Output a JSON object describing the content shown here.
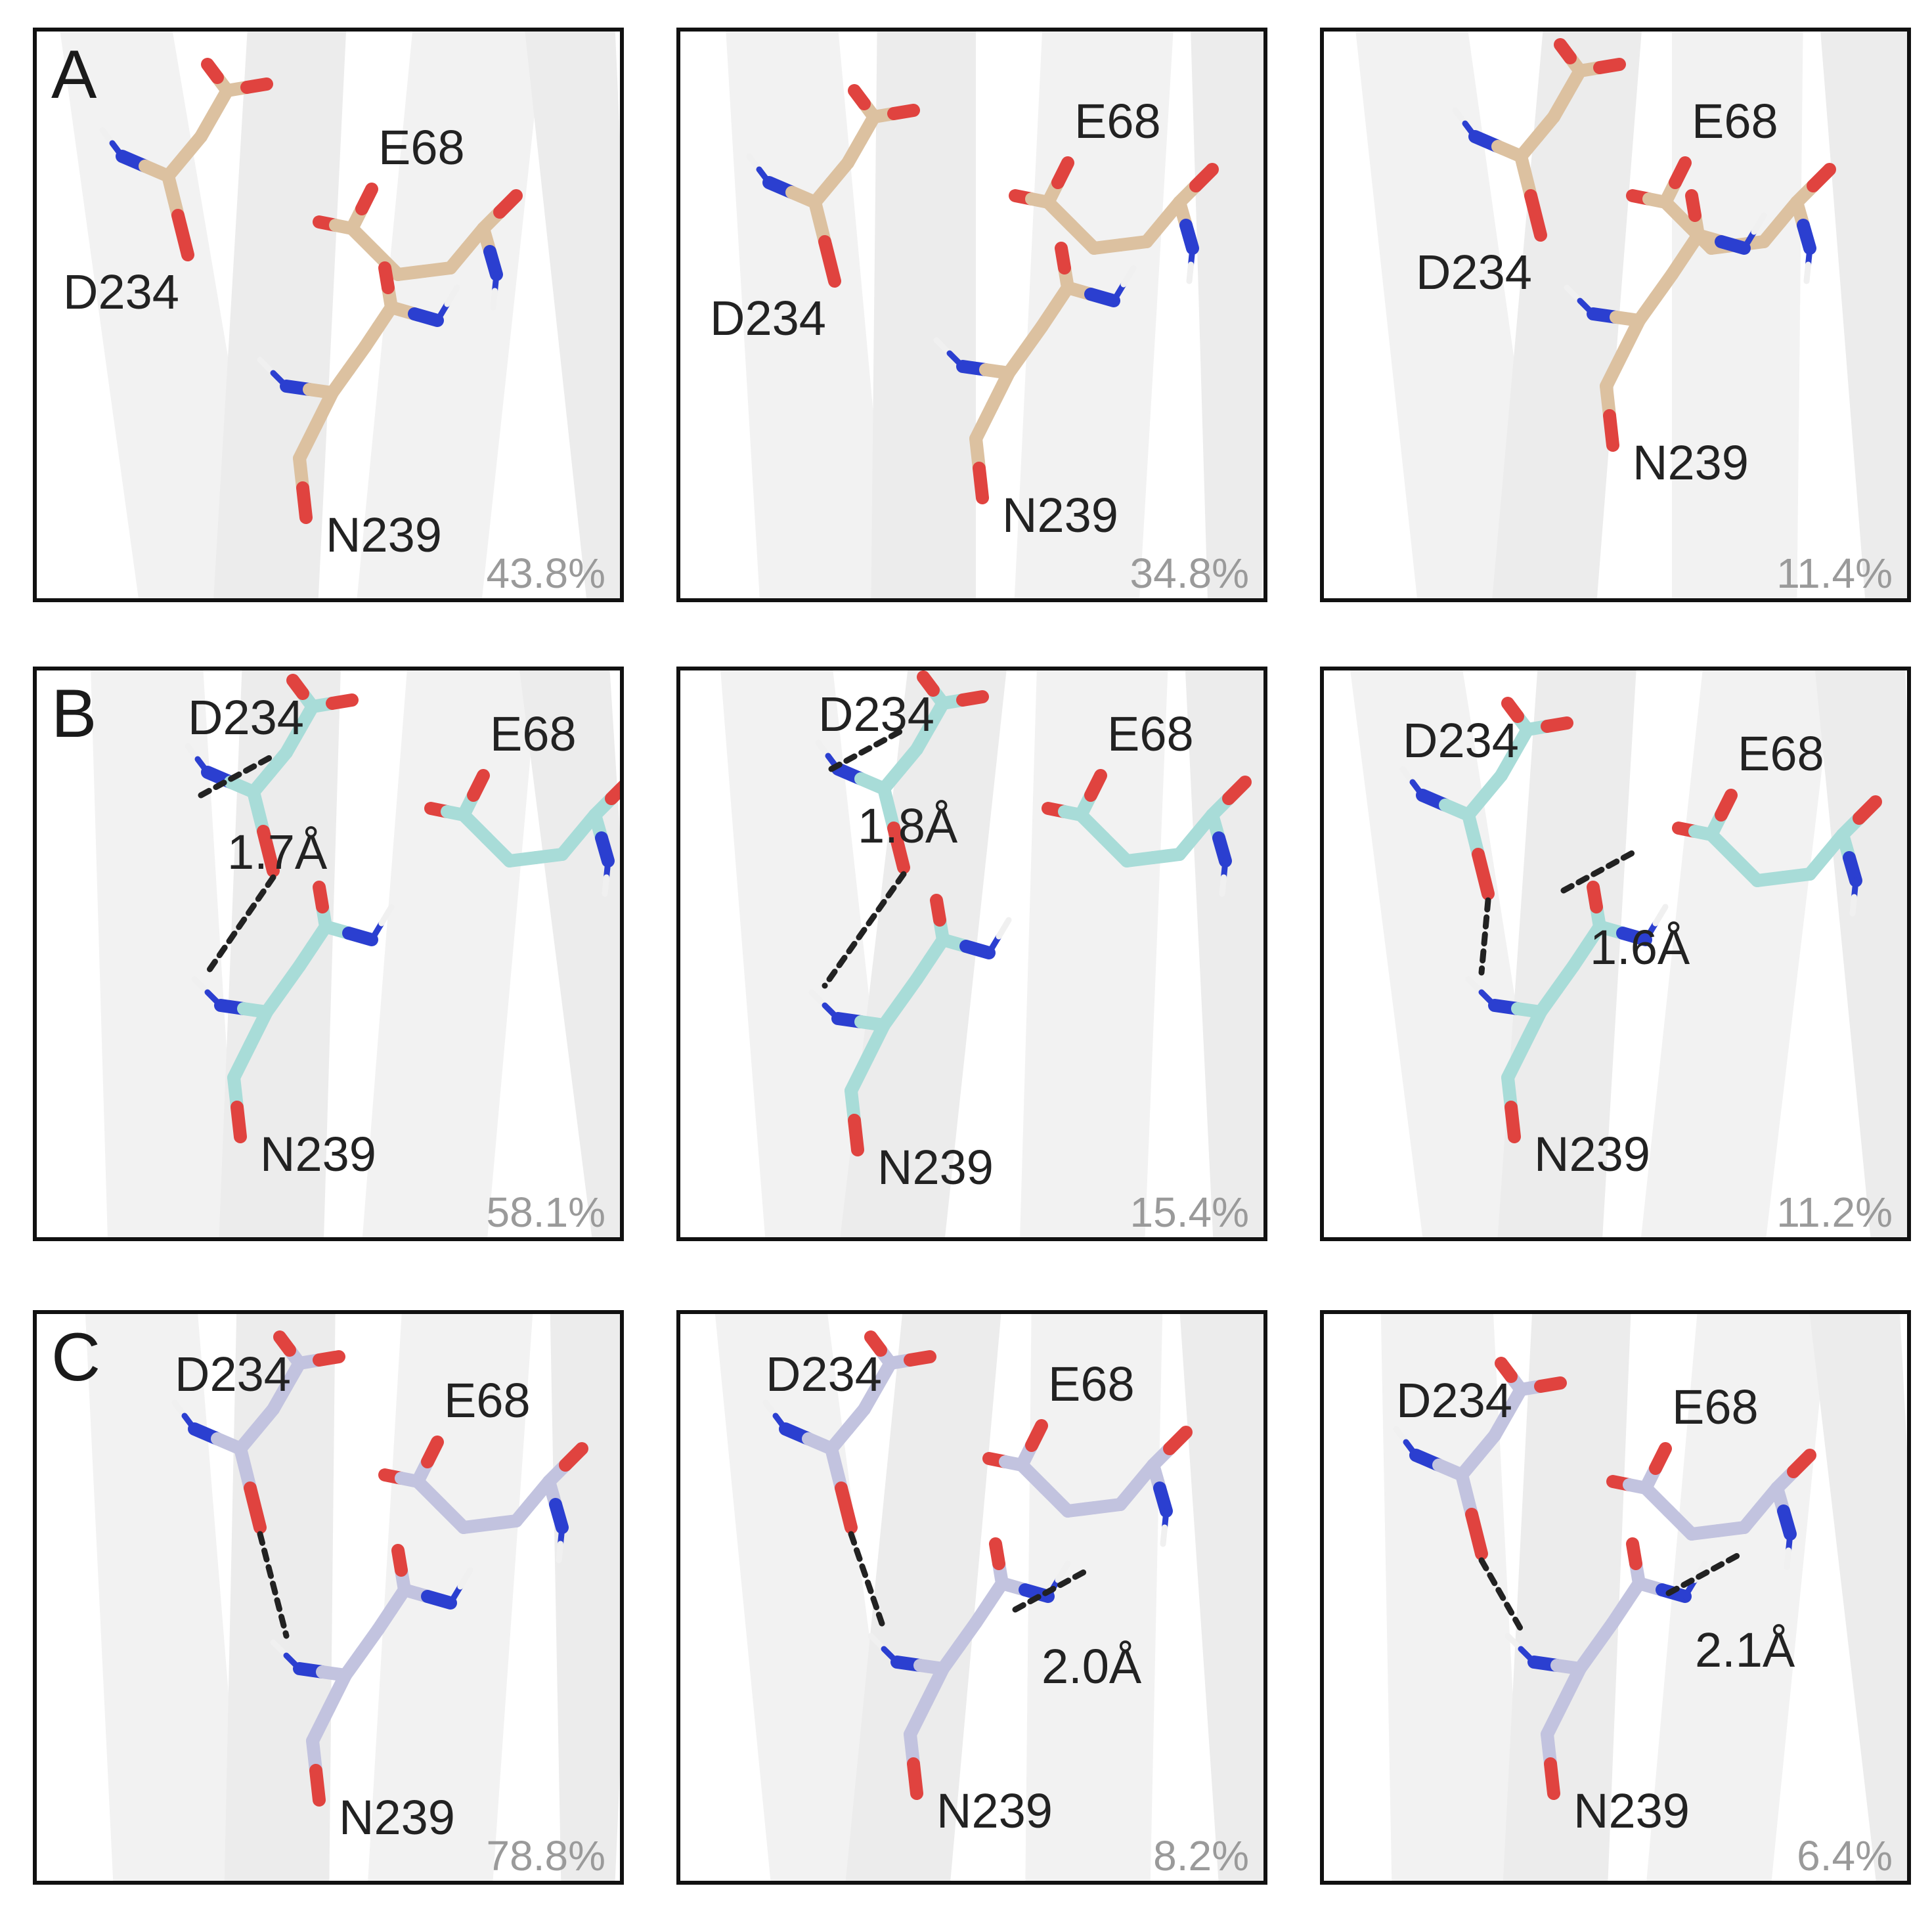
{
  "rows": [
    {
      "letter": "A",
      "carbon_color": "#dcc1a0",
      "panels": [
        {
          "labels": {
            "d": "D234",
            "e": "E68",
            "n": "N239"
          },
          "percent": "43.8%",
          "distances": []
        },
        {
          "labels": {
            "d": "D234",
            "e": "E68",
            "n": "N239"
          },
          "percent": "34.8%",
          "distances": []
        },
        {
          "labels": {
            "d": "D234",
            "e": "E68",
            "n": "N239"
          },
          "percent": "11.4%",
          "distances": []
        }
      ]
    },
    {
      "letter": "B",
      "carbon_color": "#a8dcd8",
      "panels": [
        {
          "labels": {
            "d": "D234",
            "e": "E68",
            "n": "N239"
          },
          "percent": "58.1%",
          "distances": [
            "1.7Å"
          ]
        },
        {
          "labels": {
            "d": "D234",
            "e": "E68",
            "n": "N239"
          },
          "percent": "15.4%",
          "distances": [
            "1.8Å"
          ]
        },
        {
          "labels": {
            "d": "D234",
            "e": "E68",
            "n": "N239"
          },
          "percent": "11.2%",
          "distances": [
            "1.6Å"
          ]
        }
      ]
    },
    {
      "letter": "C",
      "carbon_color": "#c2c3df",
      "panels": [
        {
          "labels": {
            "d": "D234",
            "e": "E68",
            "n": "N239"
          },
          "percent": "78.8%",
          "distances": []
        },
        {
          "labels": {
            "d": "D234",
            "e": "E68",
            "n": "N239"
          },
          "percent": "8.2%",
          "distances": [
            "2.0Å"
          ]
        },
        {
          "labels": {
            "d": "D234",
            "e": "E68",
            "n": "N239"
          },
          "percent": "6.4%",
          "distances": [
            "2.1Å"
          ]
        }
      ]
    }
  ],
  "atom_colors": {
    "oxygen": "#e0433f",
    "nitrogen": "#2b3fd0",
    "hydrogen": "#f0f0f0"
  }
}
